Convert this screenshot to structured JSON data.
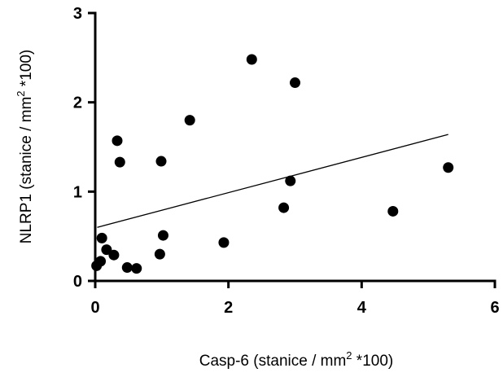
{
  "chart_data": {
    "type": "scatter",
    "title": "",
    "xlabel": {
      "pre": "Casp-6 (stanice / mm",
      "sup": "2",
      "post": " *100)"
    },
    "ylabel": {
      "pre": "NLRP1 (stanice / mm",
      "sup": "2",
      "post": " *100)"
    },
    "xlim": [
      0,
      6
    ],
    "ylim": [
      0,
      3
    ],
    "x_ticks": [
      0,
      2,
      4,
      6
    ],
    "y_ticks": [
      0,
      1,
      2,
      3
    ],
    "x_tick_labels": [
      "0",
      "2",
      "4",
      "6"
    ],
    "y_tick_labels": [
      "0",
      "1",
      "2",
      "3"
    ],
    "grid": false,
    "legend": "none",
    "marker_color": "#000000",
    "points": [
      {
        "x": 0.02,
        "y": 0.17
      },
      {
        "x": 0.08,
        "y": 0.22
      },
      {
        "x": 0.1,
        "y": 0.48
      },
      {
        "x": 0.17,
        "y": 0.35
      },
      {
        "x": 0.28,
        "y": 0.29
      },
      {
        "x": 0.33,
        "y": 1.57
      },
      {
        "x": 0.37,
        "y": 1.33
      },
      {
        "x": 0.48,
        "y": 0.15
      },
      {
        "x": 0.62,
        "y": 0.14
      },
      {
        "x": 0.97,
        "y": 0.3
      },
      {
        "x": 0.99,
        "y": 1.34
      },
      {
        "x": 1.02,
        "y": 0.51
      },
      {
        "x": 1.42,
        "y": 1.8
      },
      {
        "x": 1.93,
        "y": 0.43
      },
      {
        "x": 2.35,
        "y": 2.48
      },
      {
        "x": 2.83,
        "y": 0.82
      },
      {
        "x": 2.93,
        "y": 1.12
      },
      {
        "x": 3.0,
        "y": 2.22
      },
      {
        "x": 4.47,
        "y": 0.78
      },
      {
        "x": 5.3,
        "y": 1.27
      }
    ],
    "trendline": {
      "x": [
        0.03,
        5.3
      ],
      "y": [
        0.6,
        1.64
      ]
    }
  }
}
